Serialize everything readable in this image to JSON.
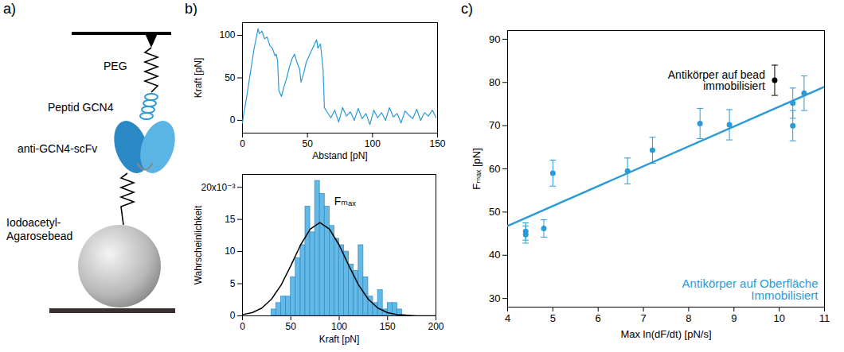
{
  "diagram": {
    "panel": "a)",
    "labels": {
      "peg": "PEG",
      "peptide": "Peptid GCN4",
      "antibody": "anti-GCN4-scFv",
      "bead": "Iodoacetyl-\nAgarosebead"
    }
  },
  "chart_data": [
    {
      "panel": "b)",
      "type": "line",
      "x_label": "Abstand [pN]",
      "y_label": "Kraft [pN]",
      "color": "#2b9ad6",
      "grid": false,
      "x": [
        0,
        1,
        3,
        5,
        7,
        9,
        11,
        12,
        13,
        15,
        17,
        19,
        21,
        23,
        25,
        26,
        27,
        28,
        30,
        32,
        34,
        36,
        38,
        40,
        42,
        44,
        45,
        47,
        49,
        51,
        53,
        55,
        57,
        58,
        60,
        62,
        63,
        65,
        68,
        71,
        74,
        77,
        80,
        83,
        86,
        89,
        92,
        95,
        98,
        101,
        104,
        107,
        110,
        113,
        116,
        119,
        122,
        125,
        128,
        131,
        134,
        137,
        140,
        143,
        146,
        149
      ],
      "values": [
        -3,
        8,
        25,
        45,
        65,
        85,
        100,
        108,
        102,
        105,
        96,
        98,
        88,
        85,
        76,
        78,
        70,
        35,
        28,
        40,
        50,
        62,
        72,
        78,
        68,
        60,
        45,
        55,
        68,
        75,
        82,
        88,
        95,
        85,
        90,
        60,
        15,
        10,
        3,
        12,
        -2,
        15,
        5,
        10,
        0,
        14,
        2,
        8,
        -5,
        12,
        3,
        9,
        0,
        15,
        4,
        8,
        -3,
        11,
        6,
        2,
        13,
        0,
        9,
        5,
        12,
        3
      ],
      "xlim": [
        0,
        150
      ],
      "ylim": [
        -15,
        115
      ],
      "xticks": [
        0,
        50,
        100,
        150
      ],
      "yticks": [
        0,
        50,
        100
      ]
    },
    {
      "type": "histogram",
      "x_label": "Kraft [pN]",
      "y_label": "Wahrscheinlichkeit",
      "color": "#63b8e6",
      "grid": false,
      "bins": [
        30,
        35,
        40,
        45,
        50,
        55,
        60,
        65,
        70,
        75,
        80,
        85,
        90,
        95,
        100,
        105,
        110,
        115,
        120,
        125,
        130,
        135,
        140,
        145,
        150,
        155,
        160,
        165,
        170
      ],
      "values": [
        0.001,
        0.002,
        0.003,
        0.003,
        0.006,
        0.009,
        0.011,
        0.017,
        0.013,
        0.021,
        0.019,
        0.017,
        0.014,
        0.012,
        0.011,
        0.01,
        0.008,
        0.007,
        0.011,
        0.006,
        0.003,
        0.002,
        0.004,
        0.001,
        0.002,
        0.002,
        0.001,
        0
      ],
      "fit": {
        "name": "Fₘₐₓ",
        "color": "#000000",
        "x": [
          0,
          10,
          20,
          30,
          40,
          50,
          60,
          70,
          80,
          90,
          100,
          110,
          120,
          130,
          140,
          150,
          160,
          170,
          180,
          190,
          200
        ],
        "values": [
          0.0002,
          0.0005,
          0.0012,
          0.0026,
          0.0048,
          0.0078,
          0.011,
          0.0135,
          0.0145,
          0.0135,
          0.011,
          0.0078,
          0.0048,
          0.0026,
          0.0012,
          0.0005,
          0.0002,
          0.0001,
          0,
          0,
          0
        ]
      },
      "xlim": [
        0,
        200
      ],
      "ylim": [
        0,
        0.022
      ],
      "xticks": [
        0,
        50,
        100,
        150,
        200
      ],
      "yticks": [
        0,
        {
          "value": 0.005,
          "label": "5"
        },
        {
          "value": 0.01,
          "label": "10"
        },
        {
          "value": 0.015,
          "label": "15"
        },
        {
          "value": 0.02,
          "label": "20x10⁻³"
        }
      ]
    },
    {
      "panel": "c)",
      "type": "scatter",
      "x_label": "Max ln(dF/dt) [pN/s]",
      "y_label": "Fₘₐₓ [pN]",
      "grid": false,
      "series": [
        {
          "name": "Antikörper auf Oberfläche\nImmobilisiert",
          "color": "#2b9ad6",
          "marker": "circle",
          "x": [
            4.4,
            4.4,
            4.8,
            5.0,
            6.65,
            7.2,
            8.25,
            8.9,
            10.3,
            10.3,
            10.55
          ],
          "values": [
            45.5,
            44.8,
            46.2,
            59,
            59.5,
            64.3,
            70.5,
            70.2,
            75.2,
            70,
            77.5
          ],
          "errors": [
            2,
            2,
            2,
            3,
            3,
            3,
            3.5,
            3.5,
            3.5,
            3.5,
            4
          ]
        },
        {
          "name": "Antikörper auf bead\nimmobilisiert",
          "color": "#000000",
          "marker": "circle",
          "x": [
            9.9
          ],
          "values": [
            80.5
          ],
          "errors": [
            3.5
          ]
        }
      ],
      "fit": {
        "color": "#2b9ad6",
        "x": [
          4,
          11
        ],
        "values": [
          46.8,
          79
        ]
      },
      "xlim": [
        4,
        11
      ],
      "ylim": [
        28,
        92
      ],
      "xticks": [
        4,
        5,
        6,
        7,
        8,
        9,
        10,
        11
      ],
      "yticks": [
        30,
        40,
        50,
        60,
        70,
        80,
        90
      ]
    }
  ]
}
